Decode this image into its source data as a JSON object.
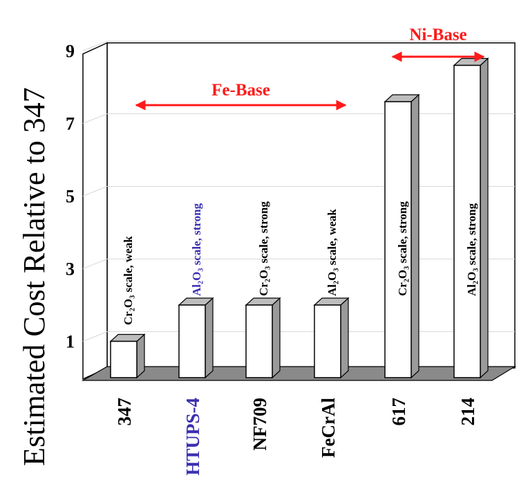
{
  "chart_data": {
    "type": "bar",
    "ylabel": "Estimated Cost Relative to 347",
    "yticks": [
      "1",
      "3",
      "5",
      "7",
      "9"
    ],
    "ylim": [
      0,
      9.5
    ],
    "grid": true,
    "categories": [
      "347",
      "HTUPS-4",
      "NF709",
      "FeCrAl",
      "617",
      "214"
    ],
    "values": [
      1,
      2,
      2,
      2,
      7.6,
      8.6
    ],
    "bar_labels": [
      "Cr₂O₃ scale, weak",
      "Al₂O₃ scale, strong",
      "Cr₂O₃ scale, strong",
      "Al₂O₃ scale, weak",
      "Cr₂O₃ scale, strong",
      "Al₂O₃ scale, strong"
    ],
    "groups": [
      {
        "label": "Fe-Base",
        "from": 0,
        "to": 3
      },
      {
        "label": "Ni-Base",
        "from": 4,
        "to": 5
      }
    ],
    "colors": {
      "highlight": "#3a2fb0",
      "arrow": "#ff1a1a",
      "floor": "#8a8a8a",
      "bar_side": "#9a9a9a"
    },
    "highlight_index": 1
  }
}
